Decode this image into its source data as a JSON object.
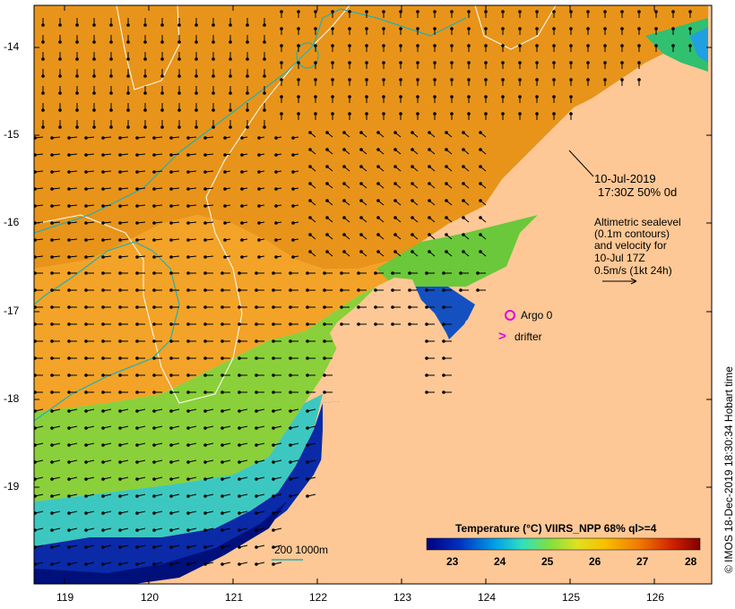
{
  "map": {
    "x_ticks": [
      "119",
      "120",
      "121",
      "122",
      "123",
      "124",
      "125",
      "126"
    ],
    "y_ticks": [
      "-14",
      "-15",
      "-16",
      "-17",
      "-18",
      "-19"
    ],
    "colors": {
      "land": "#fdc896",
      "warm": "#e08a10",
      "mid": "#f5b030",
      "green": "#6ac83a",
      "cyan": "#20c8d8",
      "blue": "#0a28a8",
      "deep": "#000a78",
      "contour_white": "#ffffff",
      "isobath": "#20b0b0",
      "marker": "#e000e0"
    }
  },
  "annotations": {
    "date": "10-Jul-2019",
    "time": "17:30Z  50% 0d",
    "alt_line1": "Altimetric sealevel",
    "alt_line2": "(0.1m contours)",
    "alt_line3": "and velocity for",
    "alt_line4": "10-Jul 17Z",
    "alt_line5": "0.5m/s (1kt 24h)",
    "argo": "Argo 0",
    "drifter": "drifter",
    "drifter_symbol": ">",
    "isobath": "200  1000m"
  },
  "colorbar": {
    "title": "Temperature (°C) VIIRS_NPP 68% ql>=4",
    "ticks": [
      "23",
      "24",
      "25",
      "26",
      "27",
      "28"
    ]
  },
  "credit": "© IMOS 18-Dec-2019 18:30:34 Hobart time"
}
